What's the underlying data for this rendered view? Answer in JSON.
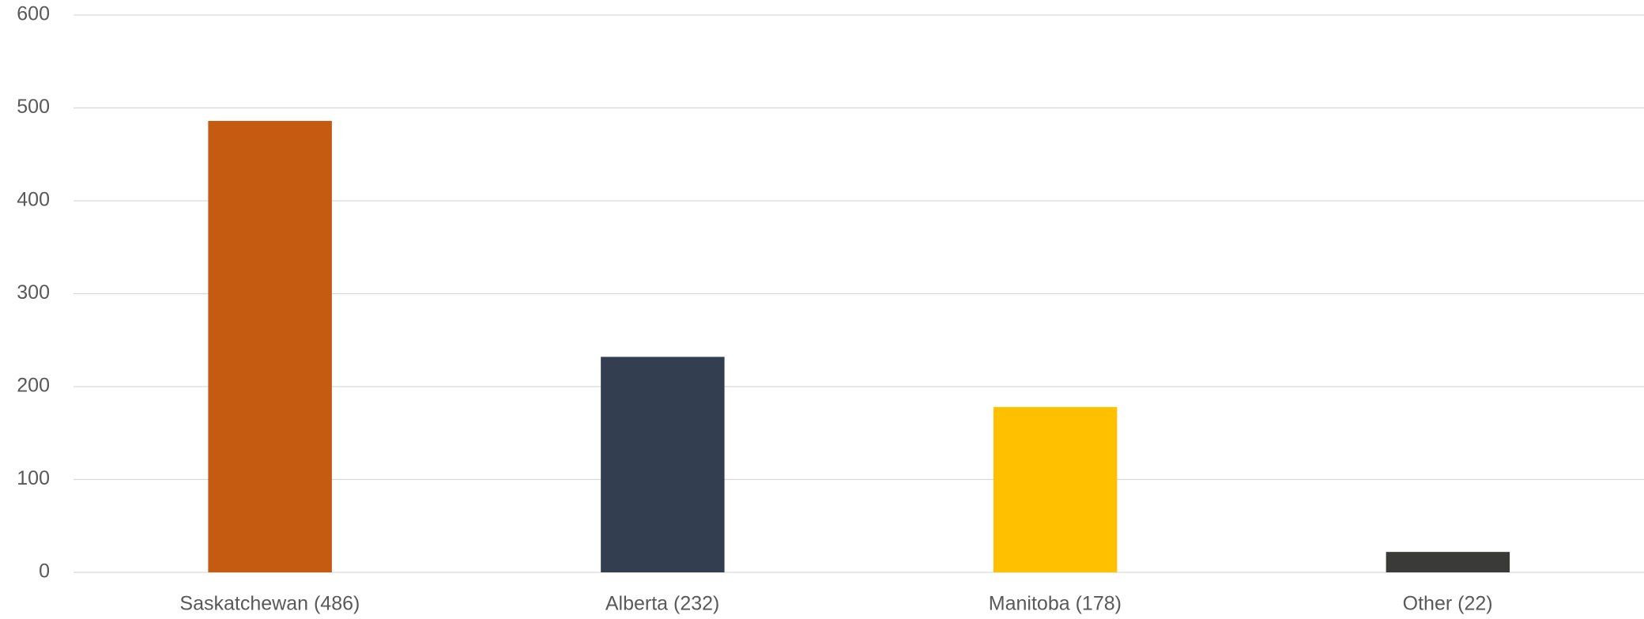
{
  "chart_data": {
    "type": "bar",
    "categories": [
      "Saskatchewan (486)",
      "Alberta (232)",
      "Manitoba (178)",
      "Other (22)"
    ],
    "values": [
      486,
      232,
      178,
      22
    ],
    "colors": [
      "#c55a11",
      "#333f50",
      "#ffc000",
      "#3a3a38"
    ],
    "ylim": [
      0,
      600
    ],
    "yticks": [
      0,
      100,
      200,
      300,
      400,
      500,
      600
    ],
    "grid": true
  }
}
